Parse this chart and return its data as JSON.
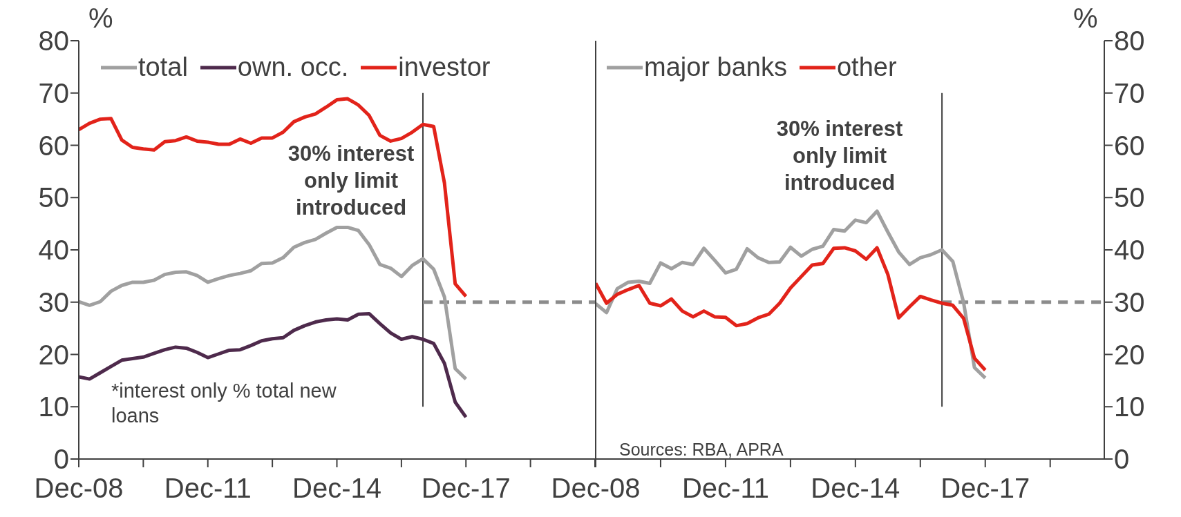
{
  "chart_data": [
    {
      "type": "line",
      "ylabel": "%",
      "legend": "top left",
      "grid": false,
      "marker": "none",
      "line_style": "solid",
      "xlim": [
        "2008-12",
        "2020-12"
      ],
      "ylim": [
        0,
        80
      ],
      "yticks": [
        0,
        10,
        20,
        30,
        40,
        50,
        60,
        70,
        80
      ],
      "xticks": [
        {
          "value": "2008-12",
          "label": "Dec-08"
        },
        {
          "value": "2010-06",
          "label": null
        },
        {
          "value": "2011-12",
          "label": "Dec-11"
        },
        {
          "value": "2013-06",
          "label": null
        },
        {
          "value": "2014-12",
          "label": "Dec-14"
        },
        {
          "value": "2016-06",
          "label": null
        },
        {
          "value": "2017-12",
          "label": "Dec-17"
        },
        {
          "value": "2019-06",
          "label": null
        },
        {
          "value": "2020-12",
          "label": null
        }
      ],
      "x": [
        "2008-12",
        "2009-03",
        "2009-06",
        "2009-09",
        "2009-12",
        "2010-03",
        "2010-06",
        "2010-09",
        "2010-12",
        "2011-03",
        "2011-06",
        "2011-09",
        "2011-12",
        "2012-03",
        "2012-06",
        "2012-09",
        "2012-12",
        "2013-03",
        "2013-06",
        "2013-09",
        "2013-12",
        "2014-03",
        "2014-06",
        "2014-09",
        "2014-12",
        "2015-03",
        "2015-06",
        "2015-09",
        "2015-12",
        "2016-03",
        "2016-06",
        "2016-09",
        "2016-12",
        "2017-03",
        "2017-06",
        "2017-09",
        "2017-12"
      ],
      "series": [
        {
          "name": "total",
          "color": "#a0a0a0",
          "values": [
            30.1,
            29.4,
            30.1,
            32.1,
            33.2,
            33.8,
            33.8,
            34.2,
            35.3,
            35.7,
            35.8,
            35.1,
            33.8,
            34.5,
            35.1,
            35.5,
            36.0,
            37.4,
            37.5,
            38.5,
            40.5,
            41.4,
            42.0,
            43.2,
            44.3,
            44.3,
            43.7,
            41.0,
            37.2,
            36.5,
            34.9,
            37.0,
            38.3,
            36.3,
            31.0,
            17.3,
            15.3
          ]
        },
        {
          "name": "own. occ.",
          "color": "#4e2a4c",
          "values": [
            15.7,
            15.3,
            16.5,
            17.7,
            18.9,
            19.2,
            19.5,
            20.2,
            20.9,
            21.4,
            21.2,
            20.4,
            19.4,
            20.1,
            20.8,
            20.9,
            21.7,
            22.6,
            23.0,
            23.2,
            24.6,
            25.5,
            26.2,
            26.6,
            26.8,
            26.6,
            27.7,
            27.8,
            25.9,
            24.1,
            22.9,
            23.4,
            22.9,
            22.1,
            18.3,
            10.9,
            8.0
          ]
        },
        {
          "name": "investor",
          "color": "#e2231a",
          "values": [
            63.0,
            64.2,
            65.0,
            65.1,
            61.0,
            59.6,
            59.3,
            59.1,
            60.7,
            60.9,
            61.6,
            60.8,
            60.6,
            60.2,
            60.2,
            61.2,
            60.4,
            61.4,
            61.4,
            62.5,
            64.5,
            65.4,
            66.0,
            67.3,
            68.7,
            68.9,
            67.7,
            65.7,
            61.9,
            60.8,
            61.3,
            62.5,
            64.0,
            63.6,
            52.8,
            33.5,
            31.1
          ]
        }
      ],
      "ref_lines": [
        {
          "axis": "x",
          "value": "2016-12",
          "color": "#404040"
        },
        {
          "axis": "y",
          "value": 30,
          "color": "#8c8c8c",
          "line_style": "dashed"
        }
      ],
      "annotations": [
        "30% interest only limit introduced",
        "*interest only % total new loans"
      ]
    },
    {
      "type": "line",
      "ylabel": "%",
      "legend": "top",
      "grid": false,
      "marker": "none",
      "line_style": "solid",
      "xlim": [
        "2008-12",
        "2020-09"
      ],
      "ylim": [
        0,
        80
      ],
      "yticks": [
        0,
        10,
        20,
        30,
        40,
        50,
        60,
        70,
        80
      ],
      "xticks": [
        {
          "value": "2008-12",
          "label": "Dec-08"
        },
        {
          "value": "2010-06",
          "label": null
        },
        {
          "value": "2011-12",
          "label": "Dec-11"
        },
        {
          "value": "2013-06",
          "label": null
        },
        {
          "value": "2014-12",
          "label": "Dec-14"
        },
        {
          "value": "2016-06",
          "label": null
        },
        {
          "value": "2017-12",
          "label": "Dec-17"
        },
        {
          "value": "2019-06",
          "label": null
        }
      ],
      "x": [
        "2008-12",
        "2009-03",
        "2009-06",
        "2009-09",
        "2009-12",
        "2010-03",
        "2010-06",
        "2010-09",
        "2010-12",
        "2011-03",
        "2011-06",
        "2011-09",
        "2011-12",
        "2012-03",
        "2012-06",
        "2012-09",
        "2012-12",
        "2013-03",
        "2013-06",
        "2013-09",
        "2013-12",
        "2014-03",
        "2014-06",
        "2014-09",
        "2014-12",
        "2015-03",
        "2015-06",
        "2015-09",
        "2015-12",
        "2016-03",
        "2016-06",
        "2016-09",
        "2016-12",
        "2017-03",
        "2017-06",
        "2017-09",
        "2017-12"
      ],
      "series": [
        {
          "name": "major banks",
          "color": "#a0a0a0",
          "values": [
            29.7,
            28.0,
            32.6,
            33.8,
            34.0,
            33.6,
            37.5,
            36.4,
            37.6,
            37.2,
            40.3,
            38.0,
            35.6,
            36.3,
            40.2,
            38.5,
            37.6,
            37.7,
            40.5,
            38.8,
            40.1,
            40.7,
            43.9,
            43.6,
            45.7,
            45.2,
            47.4,
            43.4,
            39.6,
            37.2,
            38.5,
            39.1,
            40.0,
            37.8,
            29.9,
            17.5,
            15.5
          ]
        },
        {
          "name": "other",
          "color": "#e2231a",
          "values": [
            33.6,
            29.8,
            31.5,
            32.4,
            33.2,
            29.8,
            29.3,
            30.6,
            28.3,
            27.2,
            28.3,
            27.2,
            27.1,
            25.5,
            25.9,
            27.0,
            27.7,
            29.8,
            32.7,
            34.9,
            37.1,
            37.4,
            40.3,
            40.4,
            39.8,
            38.2,
            40.4,
            35.3,
            27.0,
            29.1,
            31.1,
            30.4,
            29.8,
            29.4,
            26.9,
            19.3,
            17.0
          ]
        }
      ],
      "ref_lines": [
        {
          "axis": "x",
          "value": "2016-12",
          "color": "#404040"
        },
        {
          "axis": "y",
          "value": 30,
          "color": "#8c8c8c",
          "line_style": "dashed"
        }
      ],
      "annotations": [
        "30% interest only limit introduced",
        "Sources: RBA, APRA"
      ]
    }
  ]
}
